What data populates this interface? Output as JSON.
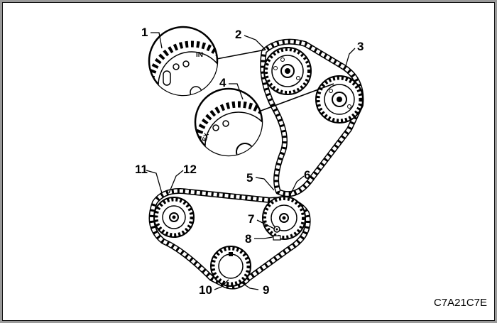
{
  "figure": {
    "code": "C7A21C7E",
    "callouts": [
      "1",
      "2",
      "3",
      "4",
      "5",
      "6",
      "7",
      "8",
      "9",
      "10",
      "11",
      "12"
    ],
    "colors": {
      "background": "#ffffff",
      "ink": "#000000",
      "frame": "#9a9a9a"
    }
  },
  "insets": {
    "upper_marks": "IN",
    "lower_marks": "EX"
  }
}
